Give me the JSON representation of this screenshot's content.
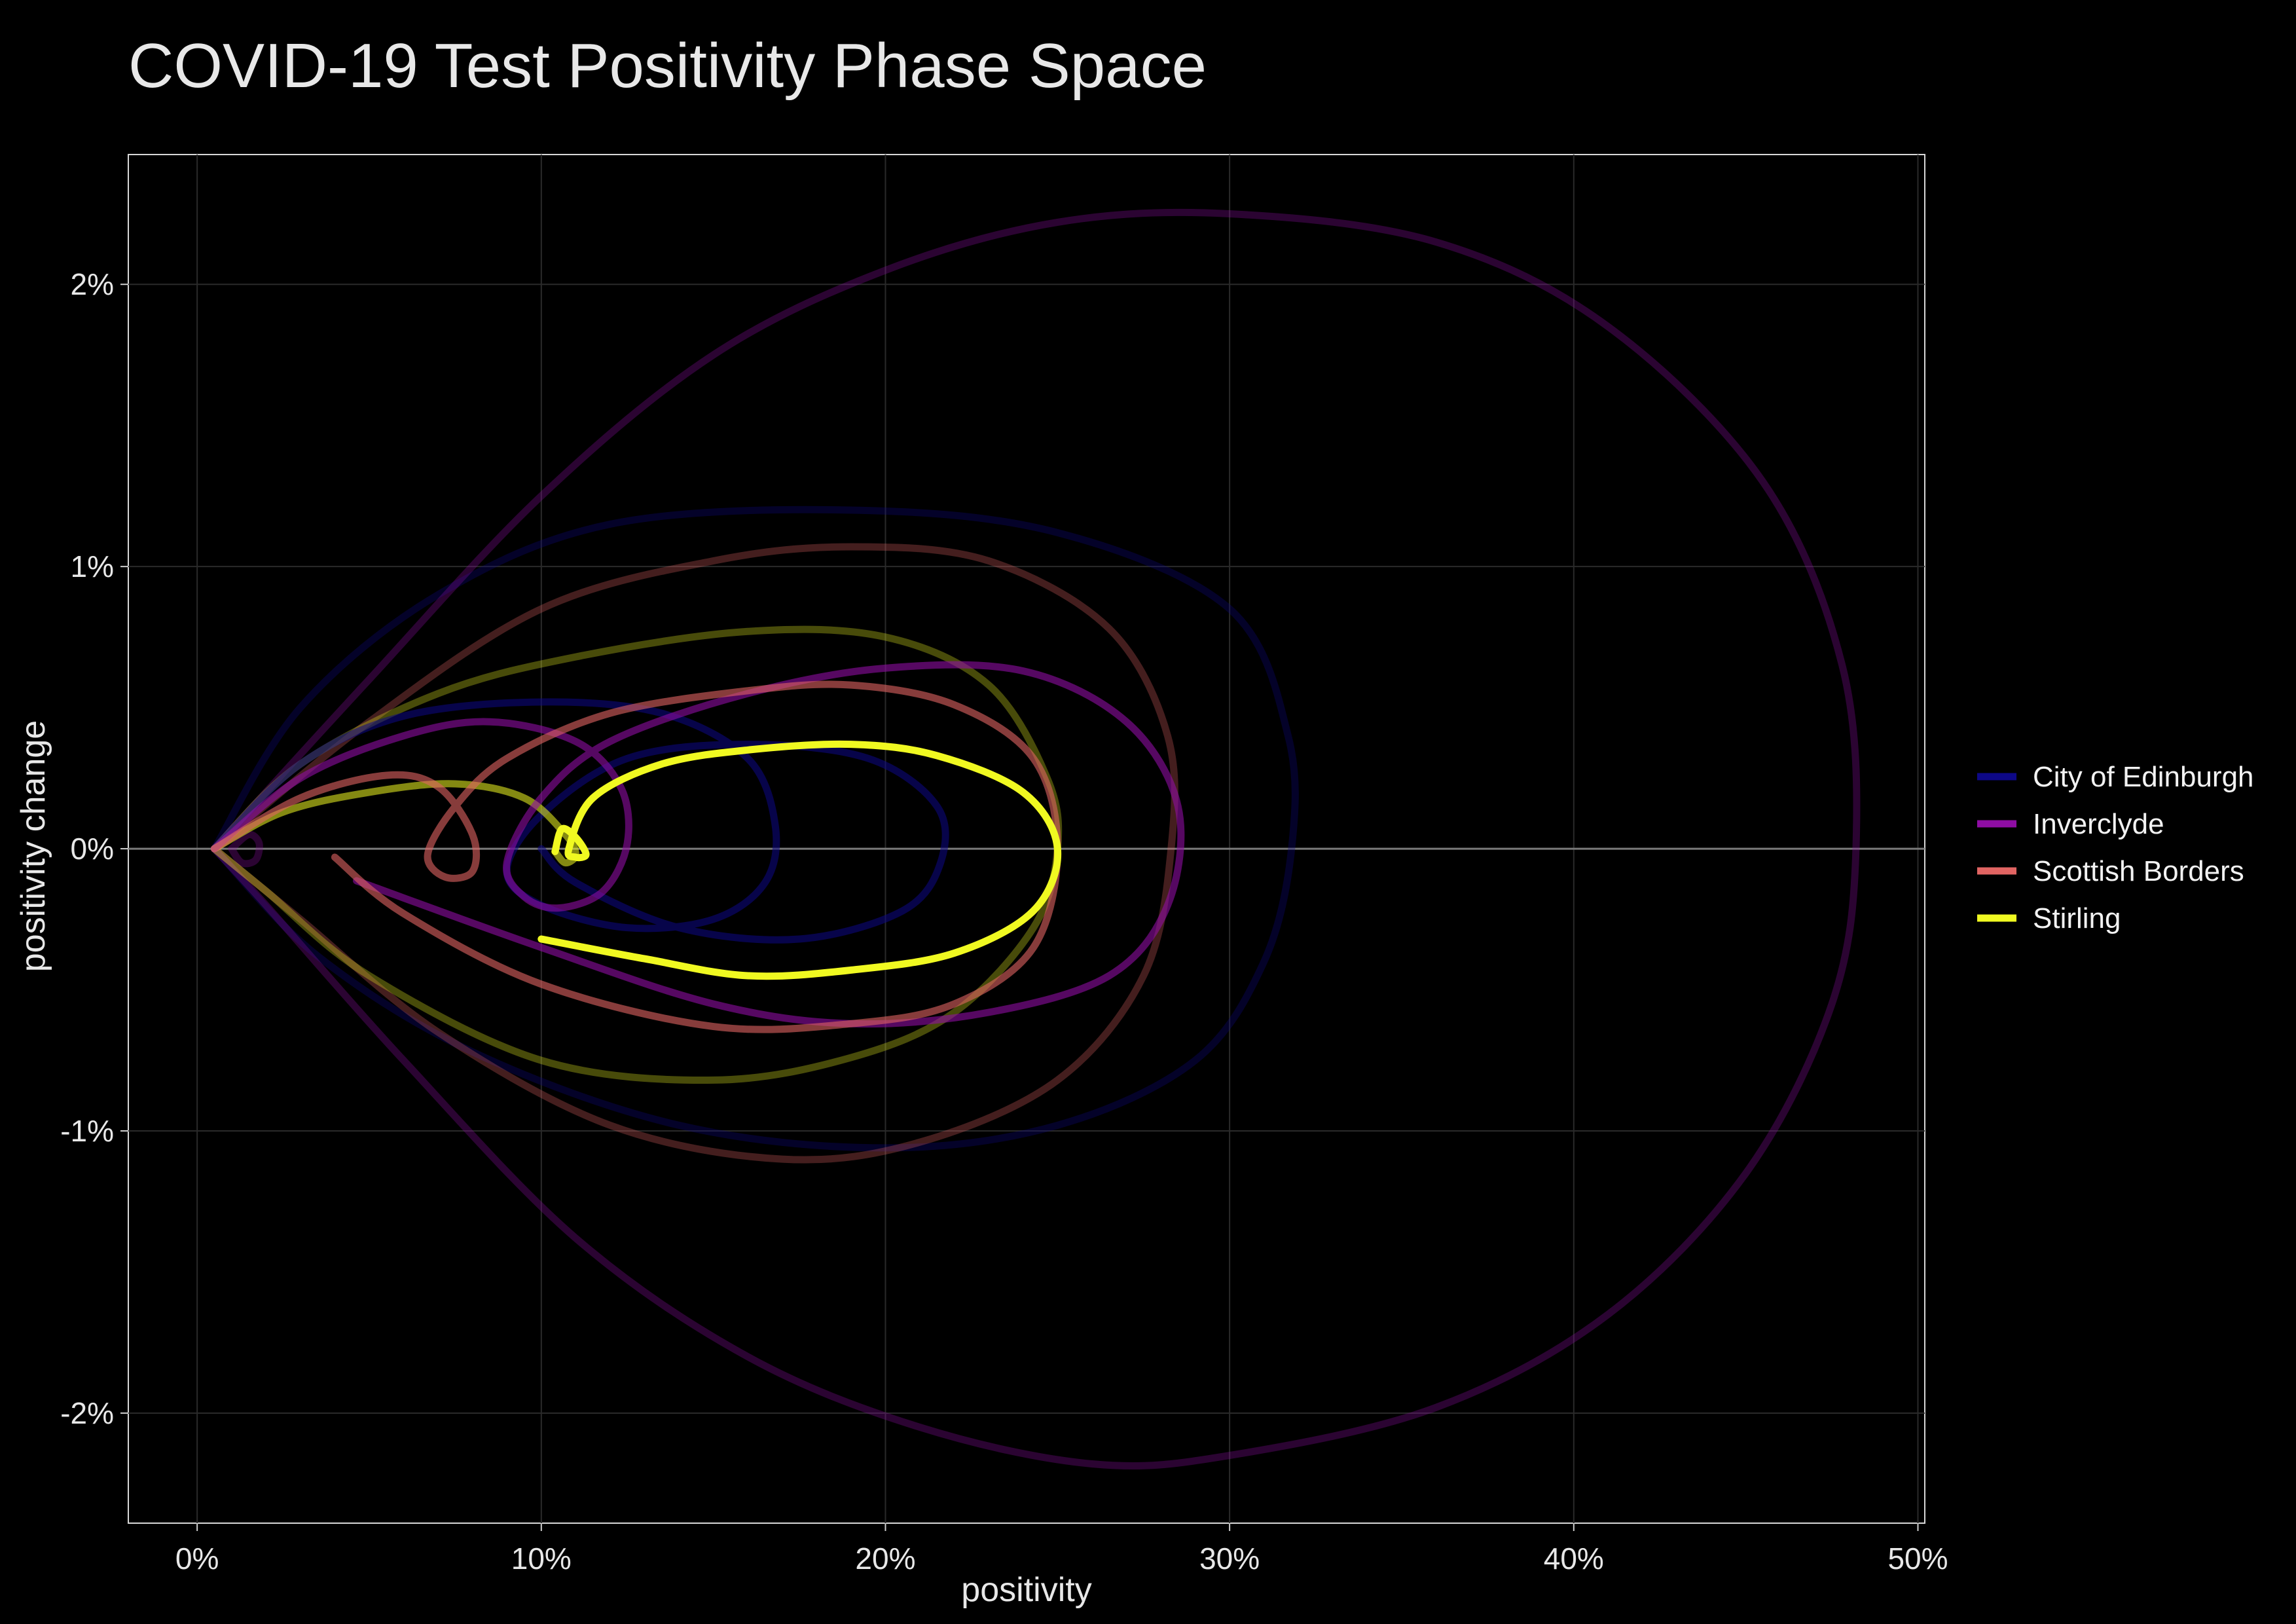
{
  "chart_data": {
    "type": "line",
    "title": "COVID-19 Test Positivity Phase Space",
    "xlabel": "positivity",
    "ylabel": "positivity change",
    "xlim": [
      -0.02,
      0.502
    ],
    "ylim": [
      -0.0239,
      0.0246
    ],
    "x_ticks": [
      0,
      0.1,
      0.2,
      0.3,
      0.4,
      0.5
    ],
    "x_tick_labels": [
      "0%",
      "10%",
      "20%",
      "30%",
      "40%",
      "50%"
    ],
    "y_ticks": [
      -0.02,
      -0.01,
      0,
      0.01,
      0.02
    ],
    "y_tick_labels": [
      "-2%",
      "-1%",
      "0%",
      "1%",
      "2%"
    ],
    "grid": true,
    "zero_line": true,
    "legend": {
      "placement": "right",
      "entries": [
        "City of Edinburgh",
        "Inverclyde",
        "Scottish Borders",
        "Stirling"
      ]
    },
    "series": [
      {
        "name": "City of Edinburgh",
        "color": "#0d0887",
        "segments": [
          {
            "opacity": 0.3,
            "points": [
              [
                0.005,
                0
              ],
              [
                0.03,
                0.005
              ],
              [
                0.07,
                0.009
              ],
              [
                0.12,
                0.0115
              ],
              [
                0.19,
                0.012
              ],
              [
                0.25,
                0.0112
              ],
              [
                0.3,
                0.0085
              ],
              [
                0.317,
                0.004
              ],
              [
                0.318,
                0
              ],
              [
                0.31,
                -0.004
              ],
              [
                0.29,
                -0.0075
              ],
              [
                0.25,
                -0.0098
              ],
              [
                0.2,
                -0.0106
              ],
              [
                0.14,
                -0.0098
              ],
              [
                0.08,
                -0.0072
              ],
              [
                0.035,
                -0.0038
              ],
              [
                0.005,
                0
              ]
            ]
          },
          {
            "opacity": 0.55,
            "points": [
              [
                0.005,
                0
              ],
              [
                0.03,
                0.003
              ],
              [
                0.06,
                0.0047
              ],
              [
                0.1,
                0.0052
              ],
              [
                0.135,
                0.0048
              ],
              [
                0.16,
                0.0032
              ],
              [
                0.168,
                0.0008
              ],
              [
                0.165,
                -0.0012
              ],
              [
                0.15,
                -0.0025
              ],
              [
                0.125,
                -0.0028
              ],
              [
                0.1,
                -0.002
              ],
              [
                0.09,
                -0.0008
              ],
              [
                0.1,
                0.0012
              ],
              [
                0.125,
                0.0032
              ],
              [
                0.16,
                0.0037
              ],
              [
                0.195,
                0.0032
              ],
              [
                0.215,
                0.0015
              ],
              [
                0.216,
                -0.0005
              ],
              [
                0.205,
                -0.0022
              ],
              [
                0.175,
                -0.0032
              ],
              [
                0.14,
                -0.0028
              ],
              [
                0.11,
                -0.0012
              ],
              [
                0.1,
                0
              ]
            ]
          }
        ]
      },
      {
        "name": "Inverclyde",
        "color": "#8f0da4",
        "segments": [
          {
            "opacity": 0.3,
            "points": [
              [
                0.005,
                0
              ],
              [
                0.05,
                0.006
              ],
              [
                0.1,
                0.0125
              ],
              [
                0.15,
                0.0175
              ],
              [
                0.2,
                0.0205
              ],
              [
                0.25,
                0.0222
              ],
              [
                0.3,
                0.0225
              ],
              [
                0.36,
                0.0215
              ],
              [
                0.41,
                0.0185
              ],
              [
                0.455,
                0.013
              ],
              [
                0.478,
                0.0065
              ],
              [
                0.482,
                0
              ],
              [
                0.475,
                -0.0055
              ],
              [
                0.45,
                -0.0115
              ],
              [
                0.41,
                -0.0165
              ],
              [
                0.36,
                -0.0198
              ],
              [
                0.3,
                -0.0215
              ],
              [
                0.26,
                -0.0218
              ],
              [
                0.21,
                -0.0205
              ],
              [
                0.16,
                -0.018
              ],
              [
                0.11,
                -0.0138
              ],
              [
                0.06,
                -0.0075
              ],
              [
                0.02,
                -0.002
              ],
              [
                0.005,
                0
              ]
            ]
          },
          {
            "opacity": 0.3,
            "points": [
              [
                0.01,
                0
              ],
              [
                0.015,
                0.0005
              ],
              [
                0.018,
                0.0002
              ],
              [
                0.017,
                -0.0004
              ],
              [
                0.013,
                -0.0005
              ],
              [
                0.01,
                0
              ]
            ]
          },
          {
            "opacity": 0.6,
            "points": [
              [
                0.005,
                0
              ],
              [
                0.03,
                0.0025
              ],
              [
                0.06,
                0.004
              ],
              [
                0.085,
                0.0045
              ],
              [
                0.11,
                0.0038
              ],
              [
                0.123,
                0.0022
              ],
              [
                0.125,
                0.0002
              ],
              [
                0.118,
                -0.0015
              ],
              [
                0.105,
                -0.0021
              ],
              [
                0.095,
                -0.0017
              ],
              [
                0.09,
                -0.0005
              ],
              [
                0.1,
                0.0018
              ],
              [
                0.12,
                0.0038
              ],
              [
                0.16,
                0.0055
              ],
              [
                0.2,
                0.0064
              ],
              [
                0.24,
                0.0063
              ],
              [
                0.27,
                0.0045
              ],
              [
                0.285,
                0.0015
              ],
              [
                0.282,
                -0.002
              ],
              [
                0.265,
                -0.0045
              ],
              [
                0.23,
                -0.0058
              ],
              [
                0.19,
                -0.0062
              ],
              [
                0.15,
                -0.0055
              ],
              [
                0.1,
                -0.0035
              ],
              [
                0.05,
                -0.0013
              ],
              [
                0.05,
                -0.0013
              ]
            ]
          }
        ]
      },
      {
        "name": "Scottish Borders",
        "color": "#e16462",
        "segments": [
          {
            "opacity": 0.3,
            "points": [
              [
                0.005,
                0
              ],
              [
                0.05,
                0.0045
              ],
              [
                0.1,
                0.0085
              ],
              [
                0.15,
                0.0102
              ],
              [
                0.19,
                0.0107
              ],
              [
                0.23,
                0.0102
              ],
              [
                0.265,
                0.0078
              ],
              [
                0.282,
                0.004
              ],
              [
                0.283,
                0
              ],
              [
                0.275,
                -0.0045
              ],
              [
                0.25,
                -0.0082
              ],
              [
                0.21,
                -0.0104
              ],
              [
                0.17,
                -0.011
              ],
              [
                0.12,
                -0.0098
              ],
              [
                0.07,
                -0.0065
              ],
              [
                0.03,
                -0.0025
              ],
              [
                0.005,
                0
              ]
            ]
          },
          {
            "opacity": 0.6,
            "points": [
              [
                0.005,
                0
              ],
              [
                0.03,
                0.0018
              ],
              [
                0.055,
                0.0026
              ],
              [
                0.07,
                0.0022
              ],
              [
                0.08,
                0.0005
              ],
              [
                0.08,
                -0.0008
              ],
              [
                0.072,
                -0.001
              ],
              [
                0.067,
                -0.0002
              ],
              [
                0.075,
                0.0015
              ],
              [
                0.09,
                0.0032
              ],
              [
                0.12,
                0.0048
              ],
              [
                0.16,
                0.0056
              ],
              [
                0.19,
                0.0058
              ],
              [
                0.22,
                0.0051
              ],
              [
                0.243,
                0.0032
              ],
              [
                0.25,
                0
              ],
              [
                0.243,
                -0.0035
              ],
              [
                0.22,
                -0.0055
              ],
              [
                0.19,
                -0.0062
              ],
              [
                0.15,
                -0.0063
              ],
              [
                0.1,
                -0.0048
              ],
              [
                0.06,
                -0.0023
              ],
              [
                0.04,
                -0.0003
              ]
            ]
          }
        ]
      },
      {
        "name": "Stirling",
        "color": "#f0f921",
        "segments": [
          {
            "opacity": 0.3,
            "points": [
              [
                0.005,
                0
              ],
              [
                0.03,
                0.003
              ],
              [
                0.07,
                0.0055
              ],
              [
                0.11,
                0.0068
              ],
              [
                0.16,
                0.0077
              ],
              [
                0.2,
                0.0075
              ],
              [
                0.23,
                0.0058
              ],
              [
                0.247,
                0.0025
              ],
              [
                0.25,
                0
              ],
              [
                0.243,
                -0.0028
              ],
              [
                0.22,
                -0.0058
              ],
              [
                0.19,
                -0.0074
              ],
              [
                0.15,
                -0.0082
              ],
              [
                0.1,
                -0.0075
              ],
              [
                0.05,
                -0.0045
              ],
              [
                0.02,
                -0.0015
              ],
              [
                0.005,
                0
              ]
            ]
          },
          {
            "opacity": 0.55,
            "points": [
              [
                0.005,
                0
              ],
              [
                0.025,
                0.0013
              ],
              [
                0.05,
                0.002
              ],
              [
                0.075,
                0.0023
              ],
              [
                0.095,
                0.0018
              ],
              [
                0.107,
                0.0005
              ],
              [
                0.11,
                -0.0002
              ],
              [
                0.107,
                -0.0005
              ],
              [
                0.104,
                -0.0001
              ]
            ]
          },
          {
            "opacity": 1,
            "points": [
              [
                0.104,
                -0.0001
              ],
              [
                0.106,
                0.0007
              ],
              [
                0.11,
                0.0004
              ],
              [
                0.113,
                -0.0002
              ],
              [
                0.11,
                -0.0003
              ],
              [
                0.108,
                0
              ],
              [
                0.115,
                0.0018
              ],
              [
                0.135,
                0.003
              ],
              [
                0.16,
                0.0035
              ],
              [
                0.19,
                0.0037
              ],
              [
                0.215,
                0.0033
              ],
              [
                0.24,
                0.002
              ],
              [
                0.25,
                0
              ],
              [
                0.243,
                -0.0022
              ],
              [
                0.22,
                -0.0037
              ],
              [
                0.19,
                -0.0043
              ],
              [
                0.16,
                -0.0045
              ],
              [
                0.13,
                -0.0039
              ],
              [
                0.1,
                -0.0032
              ]
            ]
          }
        ]
      }
    ]
  }
}
